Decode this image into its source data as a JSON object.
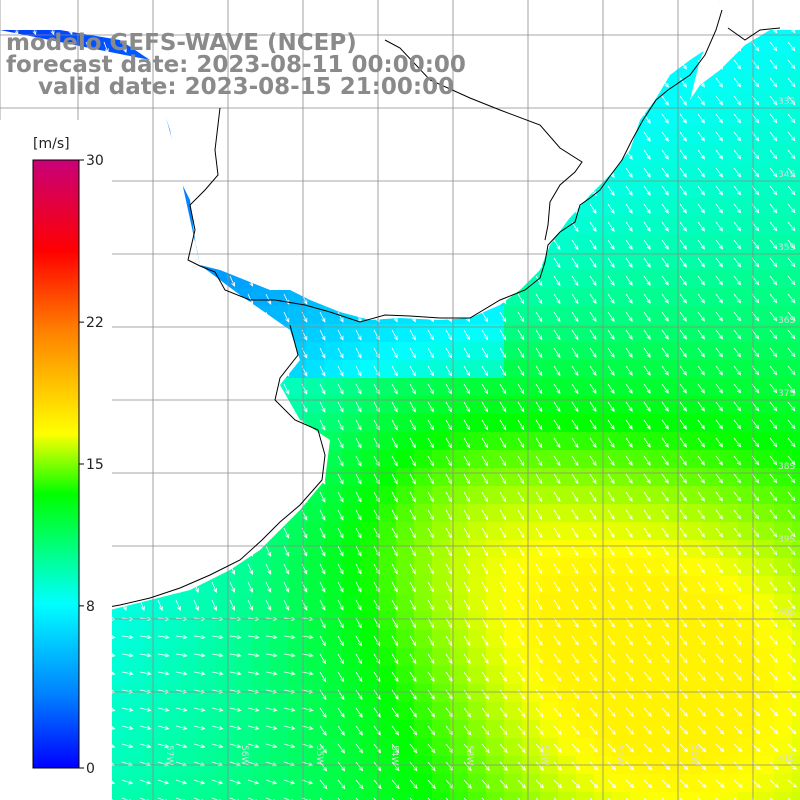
{
  "title": {
    "line1": "modelo GEFS-WAVE (NCEP)",
    "line2": "forecast date: 2023-08-11 00:00:00",
    "line3": "    valid date: 2023-08-15 21:00:00"
  },
  "colorbar": {
    "unit": "[m/s]",
    "ticks": [
      "30",
      "22",
      "15",
      "8",
      "0"
    ],
    "tick_values": [
      30,
      22,
      15,
      8,
      0
    ],
    "range": [
      0,
      30
    ],
    "colors": [
      "#0000ff",
      "#0080ff",
      "#00ffff",
      "#00ff00",
      "#ffff00",
      "#ff8000",
      "#ff0000",
      "#c80078"
    ]
  },
  "map": {
    "land_color": "#ffffff",
    "grid_color": "#8a8a8a",
    "coast_color": "#000000",
    "lat_labels": [
      "33S",
      "34S",
      "35S",
      "36S",
      "37S",
      "38S",
      "39S",
      "40S",
      "41S"
    ],
    "lon_labels": [
      "59W",
      "58W",
      "57W",
      "56W",
      "55W",
      "54W",
      "53W",
      "52W",
      "51W",
      "50W"
    ],
    "field": "wind speed",
    "wind_direction": "from north / north-west"
  }
}
